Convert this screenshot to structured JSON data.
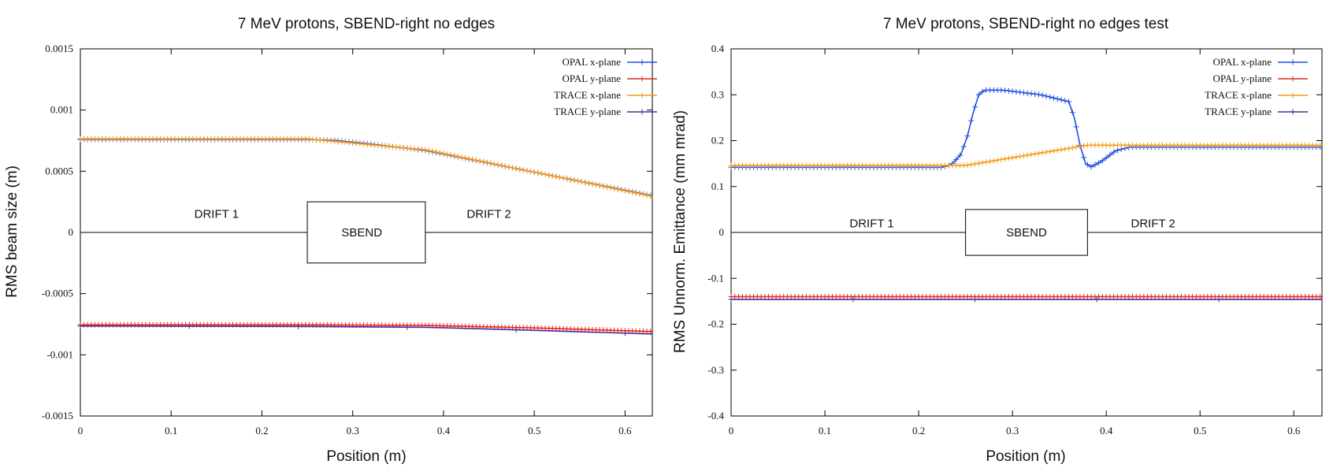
{
  "chart_data": [
    {
      "type": "line",
      "title": "7 MeV protons, SBEND-right no edges",
      "xlabel": "Position (m)",
      "ylabel": "RMS beam size (m)",
      "xlim": [
        0,
        0.63
      ],
      "ylim": [
        -0.0015,
        0.0015
      ],
      "xticks": [
        0,
        0.1,
        0.2,
        0.3,
        0.4,
        0.5,
        0.6
      ],
      "xtick_labels": [
        "0",
        "0.1",
        "0.2",
        "0.3",
        "0.4",
        "0.5",
        "0.6"
      ],
      "yticks": [
        -0.0015,
        -0.001,
        -0.0005,
        0,
        0.0005,
        0.001,
        0.0015
      ],
      "ytick_labels": [
        "-0.0015",
        "-0.001",
        "-0.0005",
        "0",
        "0.0005",
        "0.001",
        "0.0015"
      ],
      "legend_position": "top-right",
      "baseline": 0,
      "elements": {
        "sbend": [
          0.25,
          0.38
        ],
        "box_y": [
          -0.00025,
          0.00025
        ]
      },
      "annotations": [
        {
          "text": "DRIFT 1",
          "x": 0.15,
          "y": 0.00015
        },
        {
          "text": "SBEND",
          "x": 0.31,
          "y": 0.0
        },
        {
          "text": "DRIFT 2",
          "x": 0.45,
          "y": 0.00015
        }
      ],
      "series": [
        {
          "name": "OPAL x-plane",
          "color": "#1f4fe0",
          "markers": true,
          "marker_step": 0.004,
          "points": [
            [
              0,
              0.00076
            ],
            [
              0.25,
              0.00076
            ],
            [
              0.28,
              0.000752
            ],
            [
              0.31,
              0.00073
            ],
            [
              0.34,
              0.000705
            ],
            [
              0.38,
              0.00067
            ],
            [
              0.63,
              0.0003
            ]
          ]
        },
        {
          "name": "OPAL y-plane",
          "color": "#e8261c",
          "markers": true,
          "marker_step": 0.004,
          "points": [
            [
              0,
              -0.000755
            ],
            [
              0.25,
              -0.000755
            ],
            [
              0.38,
              -0.00076
            ],
            [
              0.5,
              -0.00078
            ],
            [
              0.63,
              -0.00081
            ]
          ]
        },
        {
          "name": "TRACE x-plane",
          "color": "#f39a18",
          "markers": true,
          "marker_step": 0.004,
          "points": [
            [
              0,
              0.000765
            ],
            [
              0.25,
              0.000765
            ],
            [
              0.38,
              0.000675
            ],
            [
              0.63,
              0.000295
            ]
          ]
        },
        {
          "name": "TRACE y-plane",
          "color": "#4b2a9c",
          "markers": true,
          "marker_step": 0.12,
          "points": [
            [
              0,
              -0.000765
            ],
            [
              0.25,
              -0.000768
            ],
            [
              0.38,
              -0.000775
            ],
            [
              0.5,
              -0.0008
            ],
            [
              0.63,
              -0.00083
            ]
          ]
        }
      ]
    },
    {
      "type": "line",
      "title": "7 MeV protons, SBEND-right no edges test",
      "xlabel": "Position (m)",
      "ylabel": "RMS Unnorm. Emittance (mm mrad)",
      "xlim": [
        0,
        0.63
      ],
      "ylim": [
        -0.4,
        0.4
      ],
      "xticks": [
        0,
        0.1,
        0.2,
        0.3,
        0.4,
        0.5,
        0.6
      ],
      "xtick_labels": [
        "0",
        "0.1",
        "0.2",
        "0.3",
        "0.4",
        "0.5",
        "0.6"
      ],
      "yticks": [
        -0.4,
        -0.3,
        -0.2,
        -0.1,
        0,
        0.1,
        0.2,
        0.3,
        0.4
      ],
      "ytick_labels": [
        "-0.4",
        "-0.3",
        "-0.2",
        "-0.1",
        "0",
        "0.1",
        "0.2",
        "0.3",
        "0.4"
      ],
      "legend_position": "top-right",
      "baseline": 0,
      "elements": {
        "sbend": [
          0.25,
          0.38
        ],
        "box_y": [
          -0.05,
          0.05
        ]
      },
      "annotations": [
        {
          "text": "DRIFT 1",
          "x": 0.15,
          "y": 0.02
        },
        {
          "text": "SBEND",
          "x": 0.315,
          "y": 0.0
        },
        {
          "text": "DRIFT 2",
          "x": 0.45,
          "y": 0.02
        }
      ],
      "series": [
        {
          "name": "OPAL x-plane",
          "color": "#1f4fe0",
          "markers": true,
          "marker_step": 0.004,
          "points": [
            [
              0,
              0.142
            ],
            [
              0.225,
              0.142
            ],
            [
              0.235,
              0.148
            ],
            [
              0.245,
              0.17
            ],
            [
              0.252,
              0.21
            ],
            [
              0.258,
              0.26
            ],
            [
              0.264,
              0.3
            ],
            [
              0.27,
              0.31
            ],
            [
              0.29,
              0.31
            ],
            [
              0.33,
              0.3
            ],
            [
              0.36,
              0.285
            ],
            [
              0.366,
              0.25
            ],
            [
              0.372,
              0.19
            ],
            [
              0.378,
              0.15
            ],
            [
              0.384,
              0.143
            ],
            [
              0.395,
              0.155
            ],
            [
              0.41,
              0.178
            ],
            [
              0.425,
              0.186
            ],
            [
              0.63,
              0.186
            ]
          ]
        },
        {
          "name": "OPAL y-plane",
          "color": "#e8261c",
          "markers": true,
          "marker_step": 0.004,
          "points": [
            [
              0,
              -0.14
            ],
            [
              0.63,
              -0.14
            ]
          ]
        },
        {
          "name": "TRACE x-plane",
          "color": "#f39a18",
          "markers": true,
          "marker_step": 0.004,
          "points": [
            [
              0,
              0.146
            ],
            [
              0.25,
              0.146
            ],
            [
              0.38,
              0.19
            ],
            [
              0.63,
              0.19
            ]
          ]
        },
        {
          "name": "TRACE y-plane",
          "color": "#4b2a9c",
          "markers": true,
          "marker_step": 0.13,
          "points": [
            [
              0,
              -0.146
            ],
            [
              0.63,
              -0.146
            ]
          ]
        }
      ]
    }
  ]
}
